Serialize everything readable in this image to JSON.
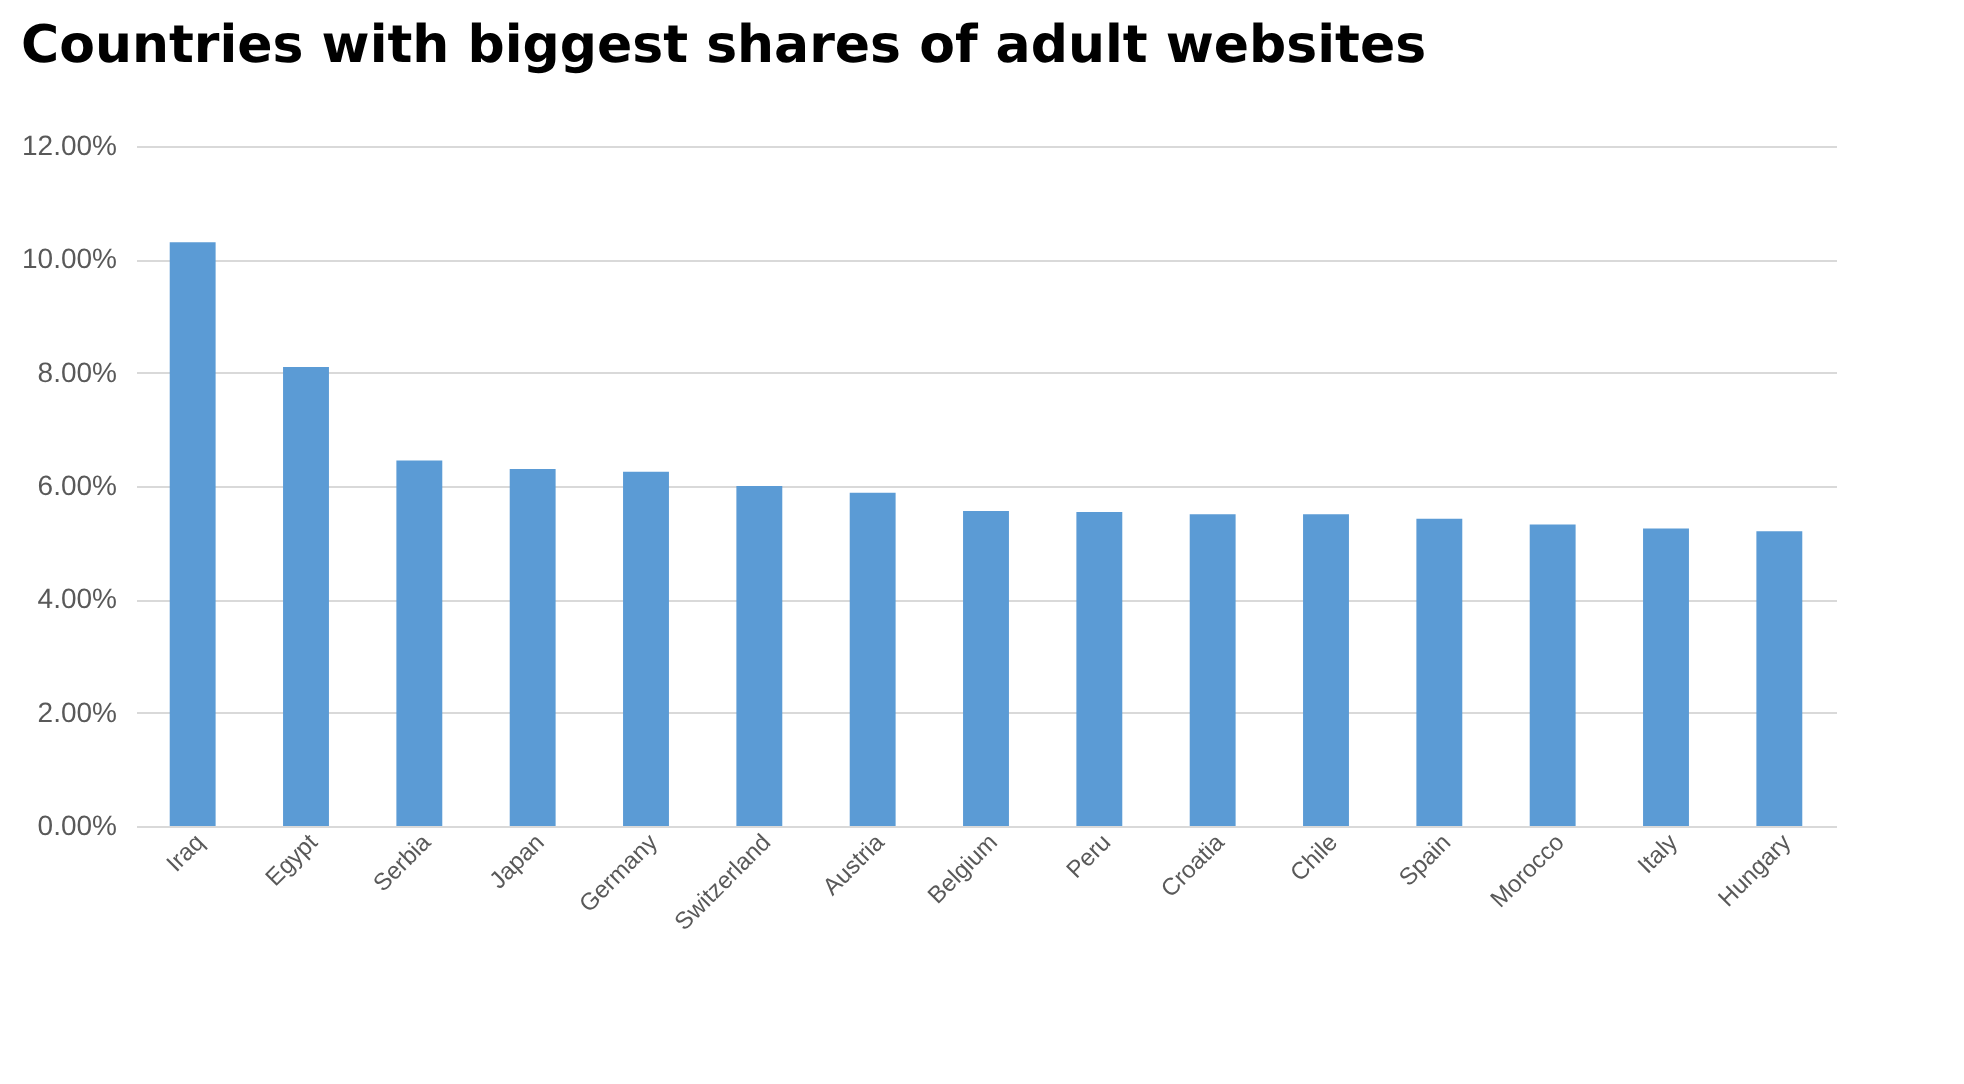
{
  "chart_data": {
    "type": "bar",
    "title": "Countries with biggest shares of adult websites",
    "categories": [
      "Iraq",
      "Egypt",
      "Serbia",
      "Japan",
      "Germany",
      "Switzerland",
      "Austria",
      "Belgium",
      "Peru",
      "Croatia",
      "Chile",
      "Spain",
      "Morocco",
      "Italy",
      "Hungary"
    ],
    "values": [
      10.3,
      8.1,
      6.45,
      6.3,
      6.25,
      6.0,
      5.88,
      5.56,
      5.54,
      5.5,
      5.5,
      5.42,
      5.32,
      5.25,
      5.2
    ],
    "color": "#5b9bd5",
    "ylim": [
      0,
      12
    ],
    "yticks": [
      {
        "value": 0,
        "label": "0.00%"
      },
      {
        "value": 2,
        "label": "2.00%"
      },
      {
        "value": 4,
        "label": "4.00%"
      },
      {
        "value": 6,
        "label": "6.00%"
      },
      {
        "value": 8,
        "label": "8.00%"
      },
      {
        "value": 10,
        "label": "10.00%"
      },
      {
        "value": 12,
        "label": "12.00%"
      }
    ],
    "grid": "y"
  }
}
